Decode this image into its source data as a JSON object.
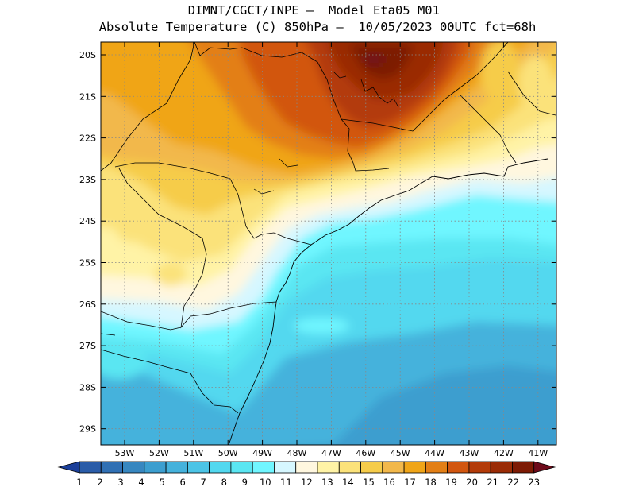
{
  "header": {
    "line1": "DIMNT/CGCT/INPE –  Model Eta05_M01_",
    "line2": "Absolute Temperature (C) 850hPa –  10/05/2023 00UTC fct=68h"
  },
  "axes": {
    "lat_labels": [
      "20S",
      "21S",
      "22S",
      "23S",
      "24S",
      "25S",
      "26S",
      "27S",
      "28S",
      "29S"
    ],
    "lon_labels": [
      "53W",
      "52W",
      "51W",
      "50W",
      "49W",
      "48W",
      "47W",
      "46W",
      "45W",
      "44W",
      "43W",
      "42W",
      "41W"
    ]
  },
  "colorbar": {
    "labels": [
      "1",
      "2",
      "3",
      "4",
      "5",
      "6",
      "7",
      "8",
      "9",
      "10",
      "11",
      "12",
      "13",
      "14",
      "15",
      "16",
      "17",
      "18",
      "19",
      "20",
      "21",
      "22",
      "23"
    ],
    "colors": [
      "#1b3f9a",
      "#2a5ca8",
      "#3070b4",
      "#3787c0",
      "#3c9ecf",
      "#45b2dc",
      "#4cc4e6",
      "#52d8ef",
      "#5ae6f2",
      "#70f6ff",
      "#d6f7ff",
      "#fff7df",
      "#fff3a6",
      "#fbe27a",
      "#f6cc4a",
      "#f2b84b",
      "#f0a518",
      "#e37f16",
      "#d2560f",
      "#b33b09",
      "#9a2b05",
      "#7d1a04",
      "#6d0a1a"
    ]
  },
  "map": {
    "lon_range": [
      -53.5,
      -40.5
    ],
    "lat_range": [
      -29.4,
      -19.8
    ],
    "gridlines": "dotted"
  }
}
